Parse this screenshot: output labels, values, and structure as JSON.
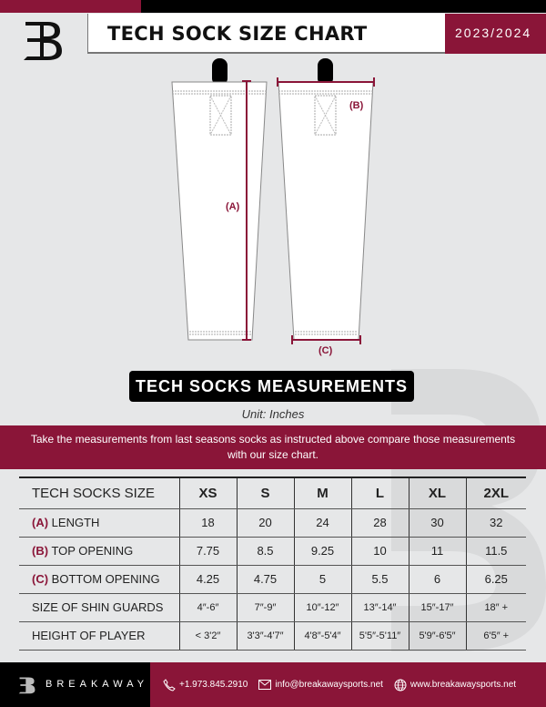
{
  "header": {
    "title": "TECH SOCK SIZE CHART",
    "season": "2023/2024",
    "logo_text": "B"
  },
  "diagram": {
    "label_a": "(A)",
    "label_b": "(B)",
    "label_c": "(C)"
  },
  "banner": "TECH SOCKS MEASUREMENTS",
  "unit": "Unit: Inches",
  "instructions": "Take the measurements from last seasons socks as instructed above compare those measurements  with our size chart.",
  "table": {
    "header": [
      "TECH SOCKS SIZE",
      "XS",
      "S",
      "M",
      "L",
      "XL",
      "2XL"
    ],
    "rows": [
      {
        "tag": "(A)",
        "label": "LENGTH",
        "values": [
          "18",
          "20",
          "24",
          "28",
          "30",
          "32"
        ]
      },
      {
        "tag": "(B)",
        "label": "TOP OPENING",
        "values": [
          "7.75",
          "8.5",
          "9.25",
          "10",
          "11",
          "11.5"
        ]
      },
      {
        "tag": "(C)",
        "label": "BOTTOM OPENING",
        "values": [
          "4.25",
          "4.75",
          "5",
          "5.5",
          "6",
          "6.25"
        ]
      },
      {
        "tag": "",
        "label": "SIZE OF SHIN GUARDS",
        "values": [
          "4″-6″",
          "7″-9″",
          "10″-12″",
          "13″-14″",
          "15″-17″",
          "18″ +"
        ]
      },
      {
        "tag": "",
        "label": "HEIGHT OF PLAYER",
        "values": [
          "< 3'2″",
          "3'3″-4'7″",
          "4'8″-5'4″",
          "5'5″-5'11″",
          "5'9″-6'5″",
          "6'5″ +"
        ]
      }
    ]
  },
  "footer": {
    "brand": "BREAKAWAY",
    "phone": "+1.973.845.2910",
    "email": "info@breakawaysports.net",
    "website": "www.breakawaysports.net"
  },
  "colors": {
    "accent": "#8a1538",
    "dark": "#000000",
    "background": "#e6e7e8"
  }
}
